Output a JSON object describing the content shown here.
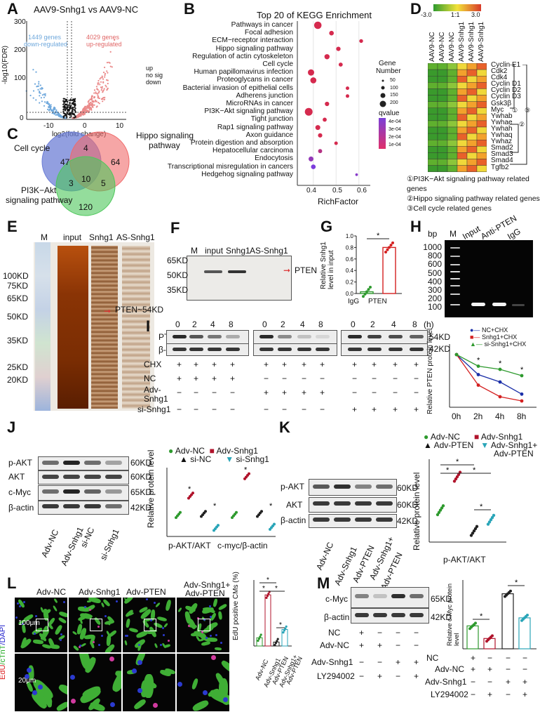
{
  "panels": {
    "A": {
      "letter": "A",
      "title": "AAV9-Snhg1 vs AAV9-NC",
      "ylabel": "-log10(FDR)",
      "xlabel": "log2(fold change)",
      "down_text_1": "1449 genes",
      "down_text_2": "down-regulated",
      "up_text_1": "4029 genes",
      "up_text_2": "up-regulated",
      "legend": [
        "up",
        "no sig",
        "down"
      ],
      "yticks": [
        "300",
        "200",
        "100",
        "0"
      ],
      "xticks": [
        "-10",
        "0",
        "10"
      ]
    },
    "B": {
      "letter": "B",
      "title": "Top 20 of KEGG Enrichment",
      "xlabel": "RichFactor",
      "xticks": [
        "0.4",
        "0.5",
        "0.6"
      ],
      "legend_size_title_1": "Gene",
      "legend_size_title_2": "Number",
      "legend_sizes": [
        "50",
        "100",
        "150",
        "200"
      ],
      "legend_q_title": "qvalue",
      "legend_q": [
        "4e-04",
        "3e-04",
        "2e-04",
        "1e-04"
      ]
    },
    "C": {
      "letter": "C",
      "set_a": "Cell cycle",
      "set_b_1": "Hippo signaling",
      "set_b_2": "pathway",
      "set_c_1": "PI3K−Akt",
      "set_c_2": "signaling pathway",
      "counts": {
        "a_only": "47",
        "ab": "4",
        "b_only": "64",
        "ac": "3",
        "abc": "10",
        "bc": "5",
        "c_only": "120"
      }
    },
    "D": {
      "letter": "D",
      "scale": [
        "-3.0",
        "1:1",
        "3.0"
      ],
      "columns": [
        "AAV9-NC",
        "AAV9-NC",
        "AAV9-NC",
        "AAV9-Snhg1",
        "AAV9-Snhg1",
        "AAV9-Snhg1"
      ],
      "genes": [
        "Cyclin E1",
        "Cdk2",
        "Cdk4",
        "Cyclin D1",
        "Cyclin D2",
        "Cyclin D3",
        "Gsk3β",
        "Myc",
        "Ywhab",
        "Ywhae",
        "Ywhah",
        "Ywhaq",
        "Ywhaz",
        "Smad2",
        "Smad3",
        "Smad4",
        "Tgfb2"
      ],
      "bracket_labels": [
        "①",
        "③",
        "②"
      ],
      "notes": [
        "①PI3K−Akt signaling pathway related genes",
        "②Hippo signaling pathway related genes",
        "③Cell cycle related genes"
      ]
    },
    "E": {
      "letter": "E",
      "lanes": [
        "M",
        "input",
        "Snhg1",
        "AS-Snhg1"
      ],
      "markers": [
        "100KD",
        "75KD",
        "65KD",
        "50KD",
        "35KD",
        "25KD",
        "20KD"
      ],
      "annotation": "PTEN~54KD"
    },
    "F": {
      "letter": "F",
      "lanes": [
        "M",
        "input",
        "Snhg1",
        "AS-Snhg1"
      ],
      "markers": [
        "65KD",
        "50KD",
        "35KD"
      ],
      "annotation": "PTEN"
    },
    "G": {
      "letter": "G",
      "ylabel_1": "Relative Snhg1",
      "ylabel_2": "level in input",
      "yticks": [
        "1.0",
        "0.8",
        "0.6",
        "0.4",
        "0.2",
        "0.0"
      ],
      "categories": [
        "IgG",
        "PTEN"
      ],
      "star": "*"
    },
    "H": {
      "letter": "H",
      "bp": "bp",
      "lanes": [
        "M",
        "Input",
        "Anti-PTEN",
        "IgG"
      ],
      "markers": [
        "1000",
        "800",
        "600",
        "500",
        "400",
        "300",
        "200",
        "100"
      ]
    },
    "I": {
      "letter": "I",
      "timepoints": [
        "0",
        "2",
        "4",
        "8",
        "0",
        "2",
        "4",
        "8",
        "0",
        "2",
        "4",
        "8"
      ],
      "hour_unit": "(h)",
      "rows": [
        "PTEN",
        "β-actin"
      ],
      "kd": [
        "54KD",
        "42KD"
      ],
      "cond_labels": [
        "CHX",
        "NC",
        "Adv-",
        "Snhg1",
        "si-Snhg1"
      ],
      "cond_values": [
        [
          "+",
          "+",
          "+",
          "+",
          "+",
          "+",
          "+",
          "+",
          "+",
          "+",
          "+",
          "+"
        ],
        [
          "+",
          "+",
          "+",
          "+",
          "−",
          "−",
          "−",
          "−",
          "−",
          "−",
          "−",
          "−"
        ],
        [
          "−",
          "−",
          "−",
          "−",
          "+",
          "+",
          "+",
          "+",
          "−",
          "−",
          "−",
          "−"
        ],
        [
          "−",
          "−",
          "−",
          "−",
          "−",
          "−",
          "−",
          "−",
          "+",
          "+",
          "+",
          "+"
        ]
      ],
      "legend": [
        "NC+CHX",
        "Snhg1+CHX",
        "si-Snhg1+CHX"
      ],
      "ylabel": "Relative PTEN protein level",
      "xticks": [
        "0h",
        "2h",
        "4h",
        "8h"
      ],
      "star": "*"
    },
    "J": {
      "letter": "J",
      "rows": [
        "p-AKT",
        "AKT",
        "c-Myc",
        "β-actin"
      ],
      "kd": [
        "60KD",
        "60KD",
        "65KD",
        "42KD"
      ],
      "lanes": [
        "Adv-NC",
        "Adv-Snhg1",
        "si-NC",
        "si-Snhg1"
      ],
      "legend": [
        "Adv-NC",
        "Adv-Snhg1",
        "si-NC",
        "si-Snhg1"
      ],
      "ylabel": "Relative protein level",
      "groups": [
        "p-AKT/AKT",
        "c-myc/β-actin"
      ],
      "star": "*"
    },
    "K": {
      "letter": "K",
      "rows": [
        "p-AKT",
        "AKT",
        "β-actin"
      ],
      "kd": [
        "60KD",
        "60KD",
        "42KD"
      ],
      "lanes": [
        "Adv-NC",
        "Adv-Snhg1",
        "Adv-PTEN",
        "Adv-Snhg1+",
        "Adv-PTEN"
      ],
      "legend": [
        "Adv-NC",
        "Adv-Snhg1",
        "Adv-PTEN",
        "Adv-Snhg1+",
        "Adv-PTEN"
      ],
      "ylabel": "Relative protein level",
      "group": "p-AKT/AKT",
      "star": "*"
    },
    "L": {
      "letter": "L",
      "columns": [
        "Adv-NC",
        "Adv-Snhg1",
        "Adv-PTEN",
        "Adv-Snhg1+",
        "Adv-PTEN"
      ],
      "side_label_1": "EdU",
      "side_label_2": "/cTnT",
      "side_label_3": "/DAPI",
      "scale_top": "100μm",
      "scale_bottom": "20μm",
      "ylabel": "EdU positive CMs (%)",
      "categories": [
        "Adv-NC",
        "Adv-Snhg1",
        "Adv-PTEN",
        "Adv-Snhg1+",
        "Adv-PTEN"
      ],
      "star": "*"
    },
    "M": {
      "letter": "M",
      "rows": [
        "c-Myc",
        "β-actin"
      ],
      "kd": [
        "65KD",
        "42KD"
      ],
      "cond_labels": [
        "NC",
        "Adv-NC",
        "Adv-Snhg1",
        "LY294002"
      ],
      "blot_cond_values": [
        [
          "+",
          "−",
          "−",
          "−"
        ],
        [
          "+",
          "+",
          "−",
          "−"
        ],
        [
          "−",
          "−",
          "+",
          "+"
        ],
        [
          "−",
          "+",
          "−",
          "+"
        ]
      ],
      "ylabel": "Relative c-Myc protein level",
      "star": "*"
    }
  },
  "chart_data": [
    {
      "type": "scatter",
      "title": "Top 20 of KEGG Enrichment",
      "xlabel": "RichFactor",
      "xlim": [
        0.33,
        0.65
      ],
      "categories": [
        "Pathways in cancer",
        "Focal adhesion",
        "ECM−receptor interaction",
        "Hippo signaling pathway",
        "Regulation of actin cytoskeleton",
        "Cell cycle",
        "Human papillomavirus infection",
        "Proteoglycans in cancer",
        "Bacterial invasion of epithelial cells",
        "Adherens junction",
        "MicroRNAs in cancer",
        "PI3K−Akt signaling pathway",
        "Tight junction",
        "Rap1 signaling pathway",
        "Axon guidance",
        "Protein digestion and absorption",
        "Hepatocellular carcinoma",
        "Endocytosis",
        "Transcriptional misregulation in cancers",
        "Hedgehog signaling pathway"
      ],
      "x": [
        0.42,
        0.48,
        0.61,
        0.51,
        0.46,
        0.52,
        0.39,
        0.4,
        0.55,
        0.55,
        0.46,
        0.38,
        0.45,
        0.42,
        0.43,
        0.5,
        0.43,
        0.39,
        0.4,
        0.59
      ],
      "gene_number": [
        190,
        90,
        60,
        80,
        110,
        70,
        150,
        140,
        50,
        50,
        80,
        200,
        70,
        100,
        80,
        50,
        70,
        100,
        90,
        20
      ],
      "qvalue": [
        5e-05,
        5e-05,
        5e-05,
        5e-05,
        5e-05,
        5e-05,
        5e-05,
        5e-05,
        5e-05,
        5e-05,
        5e-05,
        5e-05,
        5e-05,
        5e-05,
        5e-05,
        5e-05,
        0.0002,
        0.00035,
        0.00045,
        0.0004
      ]
    },
    {
      "type": "bar",
      "title": "",
      "ylabel": "Relative Snhg1 level in input",
      "categories": [
        "IgG",
        "PTEN"
      ],
      "values": [
        0.03,
        0.8
      ],
      "ylim": [
        0,
        1.0
      ]
    },
    {
      "type": "line",
      "ylabel": "Relative PTEN protein level",
      "x": [
        "0h",
        "2h",
        "4h",
        "8h"
      ],
      "series": [
        {
          "name": "NC+CHX",
          "values": [
            1.0,
            0.62,
            0.48,
            0.25
          ]
        },
        {
          "name": "Snhg1+CHX",
          "values": [
            1.0,
            0.42,
            0.2,
            0.12
          ]
        },
        {
          "name": "si-Snhg1+CHX",
          "values": [
            1.0,
            0.78,
            0.72,
            0.6
          ]
        }
      ],
      "ylim": [
        0,
        1.2
      ]
    },
    {
      "type": "scatter",
      "ylabel": "Relative protein level",
      "categories": [
        "p-AKT/AKT",
        "c-myc/β-actin"
      ],
      "series": [
        {
          "name": "Adv-NC",
          "values": [
            1.0,
            1.0
          ]
        },
        {
          "name": "Adv-Snhg1",
          "values": [
            1.9,
            2.8
          ]
        },
        {
          "name": "si-NC",
          "values": [
            1.05,
            1.05
          ]
        },
        {
          "name": "si-Snhg1",
          "values": [
            0.4,
            0.45
          ]
        }
      ],
      "ylim": [
        0,
        3.2
      ]
    },
    {
      "type": "scatter",
      "ylabel": "Relative protein level",
      "categories": [
        "Adv-NC",
        "Adv-Snhg1",
        "Adv-PTEN",
        "Adv-Snhg1+Adv-PTEN"
      ],
      "values": [
        1.0,
        2.05,
        0.35,
        0.7
      ],
      "ylim": [
        0,
        2.6
      ]
    },
    {
      "type": "bar",
      "ylabel": "EdU positive CMs (%)",
      "categories": [
        "Adv-NC",
        "Adv-Snhg1",
        "Adv-PTEN",
        "Adv-Snhg1+Adv-PTEN"
      ],
      "values": [
        2.5,
        15.5,
        1.2,
        5.0
      ],
      "ylim": [
        0,
        20
      ]
    },
    {
      "type": "bar",
      "ylabel": "Relative c-Myc protein level",
      "categories": [
        "NC",
        "Adv-NC",
        "Adv-Snhg1",
        "Adv-Snhg1+LY294002"
      ],
      "values": [
        1.0,
        0.45,
        2.4,
        1.35
      ],
      "ylim": [
        0,
        3.0
      ]
    }
  ]
}
